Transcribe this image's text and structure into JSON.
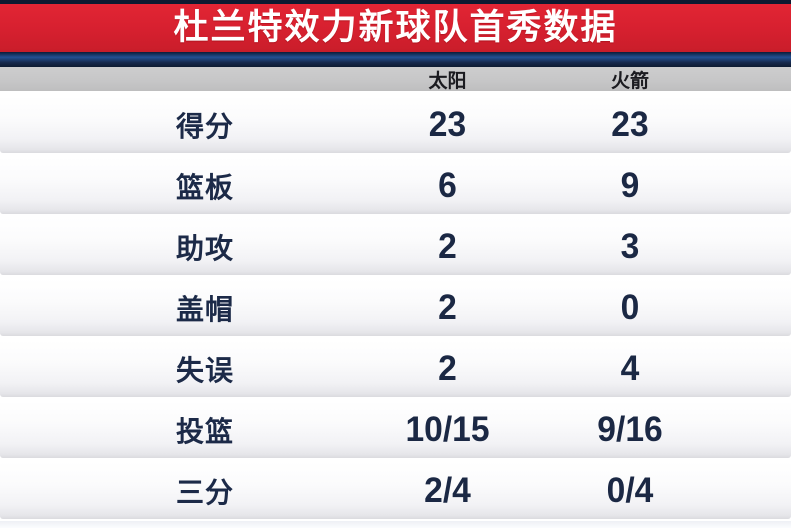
{
  "title": "杜兰特效力新球队首秀数据",
  "table": {
    "columns": [
      "太阳",
      "火箭"
    ],
    "rows": [
      {
        "label": "得分",
        "suns": "23",
        "rockets": "23"
      },
      {
        "label": "篮板",
        "suns": "6",
        "rockets": "9"
      },
      {
        "label": "助攻",
        "suns": "2",
        "rockets": "3"
      },
      {
        "label": "盖帽",
        "suns": "2",
        "rockets": "0"
      },
      {
        "label": "失误",
        "suns": "2",
        "rockets": "4"
      },
      {
        "label": "投篮",
        "suns": "10/15",
        "rockets": "9/16"
      },
      {
        "label": "三分",
        "suns": "2/4",
        "rockets": "0/4"
      }
    ]
  },
  "colors": {
    "banner_red": "#d6202f",
    "strip_navy": "#16294d",
    "header_gray": "#c6c6c7",
    "text_navy": "#1b2844"
  },
  "chart_data": {
    "type": "table",
    "title": "杜兰特效力新球队首秀数据",
    "columns": [
      "",
      "太阳",
      "火箭"
    ],
    "rows": [
      [
        "得分",
        "23",
        "23"
      ],
      [
        "篮板",
        "6",
        "9"
      ],
      [
        "助攻",
        "2",
        "3"
      ],
      [
        "盖帽",
        "2",
        "0"
      ],
      [
        "失误",
        "2",
        "4"
      ],
      [
        "投篮",
        "10/15",
        "9/16"
      ],
      [
        "三分",
        "2/4",
        "0/4"
      ]
    ]
  }
}
